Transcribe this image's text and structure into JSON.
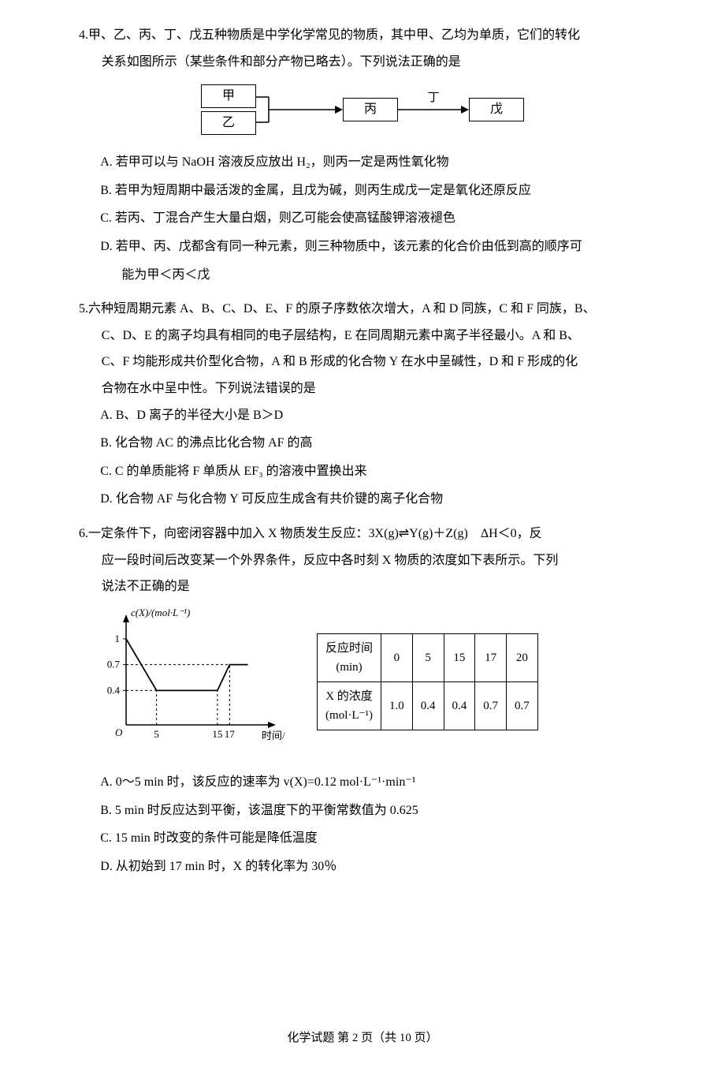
{
  "q4": {
    "num": "4.",
    "stem1": "甲、乙、丙、丁、戊五种物质是中学化学常见的物质，其中甲、乙均为单质，它们的转化",
    "stem2": "关系如图所示（某些条件和部分产物已略去）。下列说法正确的是",
    "diagram": {
      "box1": "甲",
      "box2": "乙",
      "box3": "丙",
      "label_top": "丁",
      "box4": "戊"
    },
    "optA": "A. 若甲可以与 NaOH 溶液反应放出 H₂，则丙一定是两性氧化物",
    "optB": "B. 若甲为短周期中最活泼的金属，且戊为碱，则丙生成戊一定是氧化还原反应",
    "optC": "C. 若丙、丁混合产生大量白烟，则乙可能会使高锰酸钾溶液褪色",
    "optD1": "D. 若甲、丙、戊都含有同一种元素，则三种物质中，该元素的化合价由低到高的顺序可",
    "optD2": "能为甲＜丙＜戊"
  },
  "q5": {
    "num": "5.",
    "stem1": "六种短周期元素 A、B、C、D、E、F 的原子序数依次增大，A 和 D 同族，C 和 F 同族，B、",
    "stem2": "C、D、E 的离子均具有相同的电子层结构，E 在同周期元素中离子半径最小。A 和 B、",
    "stem3": "C、F 均能形成共价型化合物，A 和 B 形成的化合物 Y 在水中呈碱性，D 和 F 形成的化",
    "stem4": "合物在水中呈中性。下列说法错误的是",
    "optA": "A. B、D 离子的半径大小是 B＞D",
    "optB": "B. 化合物 AC 的沸点比化合物 AF 的高",
    "optC": "C. C 的单质能将 F 单质从 EF₃ 的溶液中置换出来",
    "optD": "D. 化合物 AF 与化合物 Y 可反应生成含有共价键的离子化合物"
  },
  "q6": {
    "num": "6.",
    "stem1": "一定条件下，向密闭容器中加入 X 物质发生反应：3X(g)⇌Y(g)＋Z(g)　ΔH＜0，反",
    "stem2": "应一段时间后改变某一个外界条件，反应中各时刻 X 物质的浓度如下表所示。下列",
    "stem3": "说法不正确的是",
    "chart": {
      "y_label": "c(X)/(mol·L⁻¹)",
      "x_label": "时间/min",
      "y_ticks": [
        "1",
        "0.7",
        "0.4"
      ],
      "x_ticks": [
        "5",
        "15",
        "17"
      ],
      "y_vals": [
        1,
        0.7,
        0.4
      ],
      "x_vals": [
        5,
        15,
        17
      ],
      "line_points": [
        [
          0,
          1.0
        ],
        [
          5,
          0.4
        ],
        [
          15,
          0.4
        ],
        [
          17,
          0.7
        ],
        [
          20,
          0.7
        ]
      ],
      "axis_color": "#000",
      "line_color": "#000",
      "dash_color": "#000"
    },
    "table": {
      "row1_label_a": "反应时间",
      "row1_label_b": "(min)",
      "row2_label_a": "X 的浓度",
      "row2_label_b": "(mol·L⁻¹)",
      "cols": [
        "0",
        "5",
        "15",
        "17",
        "20"
      ],
      "vals": [
        "1.0",
        "0.4",
        "0.4",
        "0.7",
        "0.7"
      ]
    },
    "optA": "A. 0～5 min 时，该反应的速率为 v(X)=0.12 mol·L⁻¹·min⁻¹",
    "optB": "B. 5 min 时反应达到平衡，该温度下的平衡常数值为 0.625",
    "optC": "C. 15 min 时改变的条件可能是降低温度",
    "optD": "D. 从初始到 17 min 时，X 的转化率为 30％"
  },
  "footer": "化学试题 第 2 页（共 10 页）"
}
